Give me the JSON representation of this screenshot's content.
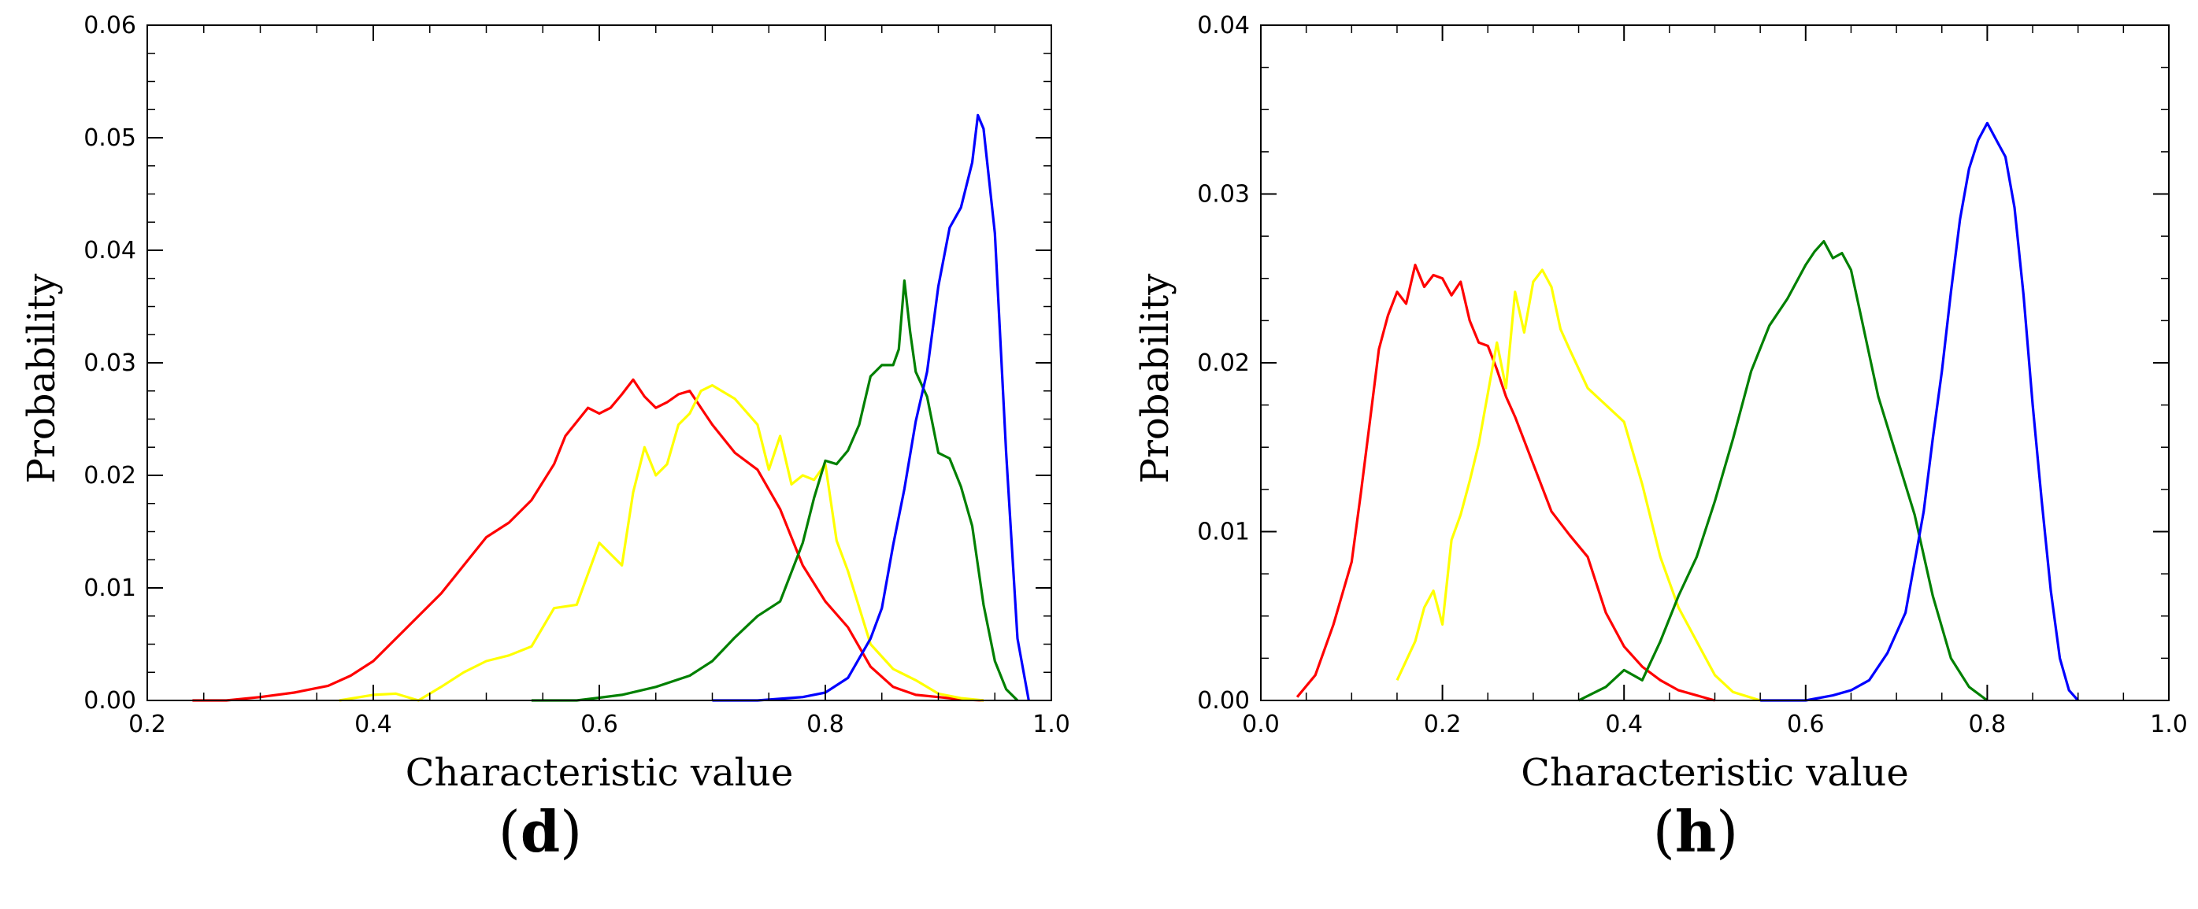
{
  "chart_data": [
    {
      "type": "line",
      "panel_label": "d",
      "xlabel": "Characteristic value",
      "ylabel": "Probability",
      "xlim": [
        0.2,
        1.0
      ],
      "ylim": [
        0.0,
        0.06
      ],
      "xticks": [
        "0.2",
        "0.4",
        "0.6",
        "0.8",
        "1.0"
      ],
      "yticks": [
        "0.00",
        "0.01",
        "0.02",
        "0.03",
        "0.04",
        "0.05",
        "0.06"
      ],
      "series": [
        {
          "name": "red",
          "color": "#ff0000",
          "x": [
            0.24,
            0.27,
            0.3,
            0.33,
            0.36,
            0.38,
            0.4,
            0.42,
            0.44,
            0.46,
            0.48,
            0.5,
            0.52,
            0.54,
            0.56,
            0.57,
            0.59,
            0.6,
            0.61,
            0.62,
            0.63,
            0.64,
            0.65,
            0.66,
            0.67,
            0.68,
            0.69,
            0.7,
            0.72,
            0.74,
            0.76,
            0.78,
            0.8,
            0.82,
            0.84,
            0.86,
            0.88,
            0.9,
            0.92,
            0.94
          ],
          "y": [
            0.0,
            0.0,
            0.0003,
            0.0007,
            0.0013,
            0.0022,
            0.0035,
            0.0055,
            0.0075,
            0.0095,
            0.012,
            0.0145,
            0.0158,
            0.0178,
            0.021,
            0.0235,
            0.026,
            0.0255,
            0.026,
            0.0272,
            0.0285,
            0.027,
            0.026,
            0.0265,
            0.0272,
            0.0275,
            0.026,
            0.0245,
            0.022,
            0.0205,
            0.017,
            0.012,
            0.0088,
            0.0065,
            0.003,
            0.0012,
            0.0005,
            0.0003,
            0.0001,
            0.0
          ]
        },
        {
          "name": "yellow",
          "color": "#ffff00",
          "x": [
            0.37,
            0.4,
            0.42,
            0.44,
            0.46,
            0.48,
            0.5,
            0.52,
            0.54,
            0.56,
            0.58,
            0.6,
            0.62,
            0.63,
            0.64,
            0.65,
            0.66,
            0.67,
            0.68,
            0.69,
            0.7,
            0.72,
            0.74,
            0.75,
            0.76,
            0.77,
            0.78,
            0.79,
            0.8,
            0.81,
            0.82,
            0.84,
            0.86,
            0.88,
            0.9,
            0.92,
            0.94
          ],
          "y": [
            0.0,
            0.0005,
            0.0006,
            0.0,
            0.0012,
            0.0025,
            0.0035,
            0.004,
            0.0048,
            0.0082,
            0.0085,
            0.014,
            0.012,
            0.0185,
            0.0225,
            0.02,
            0.021,
            0.0245,
            0.0255,
            0.0275,
            0.028,
            0.0268,
            0.0245,
            0.0205,
            0.0235,
            0.0192,
            0.02,
            0.0196,
            0.021,
            0.0142,
            0.0115,
            0.005,
            0.0028,
            0.0018,
            0.0006,
            0.0002,
            0.0
          ]
        },
        {
          "name": "green",
          "color": "#008000",
          "x": [
            0.54,
            0.58,
            0.62,
            0.65,
            0.68,
            0.7,
            0.72,
            0.74,
            0.76,
            0.78,
            0.79,
            0.8,
            0.81,
            0.82,
            0.83,
            0.84,
            0.85,
            0.86,
            0.865,
            0.87,
            0.875,
            0.88,
            0.89,
            0.9,
            0.91,
            0.92,
            0.93,
            0.94,
            0.95,
            0.96,
            0.97
          ],
          "y": [
            0.0,
            0.0,
            0.0005,
            0.0012,
            0.0022,
            0.0035,
            0.0056,
            0.0075,
            0.0088,
            0.014,
            0.018,
            0.0213,
            0.021,
            0.0222,
            0.0245,
            0.0288,
            0.0298,
            0.0298,
            0.0312,
            0.0373,
            0.0328,
            0.0292,
            0.027,
            0.022,
            0.0215,
            0.019,
            0.0155,
            0.0085,
            0.0035,
            0.001,
            0.0
          ]
        },
        {
          "name": "blue",
          "color": "#0000ff",
          "x": [
            0.7,
            0.74,
            0.78,
            0.8,
            0.82,
            0.84,
            0.85,
            0.86,
            0.87,
            0.88,
            0.89,
            0.9,
            0.91,
            0.92,
            0.93,
            0.935,
            0.94,
            0.95,
            0.96,
            0.97,
            0.98
          ],
          "y": [
            0.0,
            0.0,
            0.0003,
            0.0007,
            0.002,
            0.0055,
            0.0082,
            0.0138,
            0.0188,
            0.0248,
            0.0292,
            0.0368,
            0.042,
            0.0438,
            0.0478,
            0.052,
            0.0508,
            0.0415,
            0.022,
            0.0055,
            0.0
          ]
        }
      ]
    },
    {
      "type": "line",
      "panel_label": "h",
      "xlabel": "Characteristic value",
      "ylabel": "Probability",
      "xlim": [
        0.0,
        1.0
      ],
      "ylim": [
        0.0,
        0.04
      ],
      "xticks": [
        "0.0",
        "0.2",
        "0.4",
        "0.6",
        "0.8",
        "1.0"
      ],
      "yticks": [
        "0.00",
        "0.01",
        "0.02",
        "0.03",
        "0.04"
      ],
      "series": [
        {
          "name": "red",
          "color": "#ff0000",
          "x": [
            0.04,
            0.06,
            0.08,
            0.1,
            0.11,
            0.12,
            0.13,
            0.14,
            0.15,
            0.16,
            0.17,
            0.18,
            0.19,
            0.2,
            0.21,
            0.22,
            0.23,
            0.24,
            0.25,
            0.26,
            0.27,
            0.28,
            0.3,
            0.32,
            0.34,
            0.36,
            0.38,
            0.4,
            0.42,
            0.44,
            0.46,
            0.48,
            0.5
          ],
          "y": [
            0.0002,
            0.0015,
            0.0045,
            0.0082,
            0.0122,
            0.0165,
            0.0208,
            0.0228,
            0.0242,
            0.0235,
            0.0258,
            0.0245,
            0.0252,
            0.025,
            0.024,
            0.0248,
            0.0225,
            0.0212,
            0.021,
            0.0196,
            0.018,
            0.0168,
            0.014,
            0.0112,
            0.0098,
            0.0085,
            0.0052,
            0.0032,
            0.002,
            0.0012,
            0.0006,
            0.0003,
            0.0
          ]
        },
        {
          "name": "yellow",
          "color": "#ffff00",
          "x": [
            0.15,
            0.17,
            0.18,
            0.19,
            0.2,
            0.21,
            0.22,
            0.23,
            0.24,
            0.25,
            0.26,
            0.27,
            0.28,
            0.29,
            0.3,
            0.31,
            0.32,
            0.33,
            0.34,
            0.36,
            0.38,
            0.4,
            0.42,
            0.44,
            0.46,
            0.48,
            0.5,
            0.52,
            0.55
          ],
          "y": [
            0.0012,
            0.0035,
            0.0055,
            0.0065,
            0.0045,
            0.0095,
            0.011,
            0.013,
            0.0152,
            0.0182,
            0.0212,
            0.0185,
            0.0242,
            0.0218,
            0.0248,
            0.0255,
            0.0245,
            0.022,
            0.0208,
            0.0185,
            0.0175,
            0.0165,
            0.0128,
            0.0085,
            0.0055,
            0.0035,
            0.0015,
            0.0005,
            0.0
          ]
        },
        {
          "name": "green",
          "color": "#008000",
          "x": [
            0.35,
            0.38,
            0.4,
            0.42,
            0.44,
            0.46,
            0.48,
            0.5,
            0.52,
            0.54,
            0.56,
            0.58,
            0.6,
            0.61,
            0.62,
            0.63,
            0.64,
            0.65,
            0.66,
            0.68,
            0.7,
            0.72,
            0.74,
            0.76,
            0.78,
            0.8
          ],
          "y": [
            0.0,
            0.0008,
            0.0018,
            0.0012,
            0.0035,
            0.0062,
            0.0085,
            0.0118,
            0.0155,
            0.0195,
            0.0222,
            0.0238,
            0.0258,
            0.0266,
            0.0272,
            0.0262,
            0.0265,
            0.0255,
            0.023,
            0.018,
            0.0145,
            0.011,
            0.0062,
            0.0025,
            0.0008,
            0.0
          ]
        },
        {
          "name": "blue",
          "color": "#0000ff",
          "x": [
            0.55,
            0.6,
            0.63,
            0.65,
            0.67,
            0.69,
            0.71,
            0.72,
            0.73,
            0.74,
            0.75,
            0.76,
            0.77,
            0.78,
            0.79,
            0.8,
            0.81,
            0.82,
            0.83,
            0.84,
            0.85,
            0.86,
            0.87,
            0.88,
            0.89,
            0.9
          ],
          "y": [
            0.0,
            0.0,
            0.0003,
            0.0006,
            0.0012,
            0.0028,
            0.0052,
            0.0082,
            0.0112,
            0.0155,
            0.0195,
            0.0242,
            0.0285,
            0.0315,
            0.0332,
            0.0342,
            0.0332,
            0.0322,
            0.0292,
            0.024,
            0.0175,
            0.0118,
            0.0065,
            0.0025,
            0.0006,
            0.0
          ]
        }
      ]
    }
  ]
}
